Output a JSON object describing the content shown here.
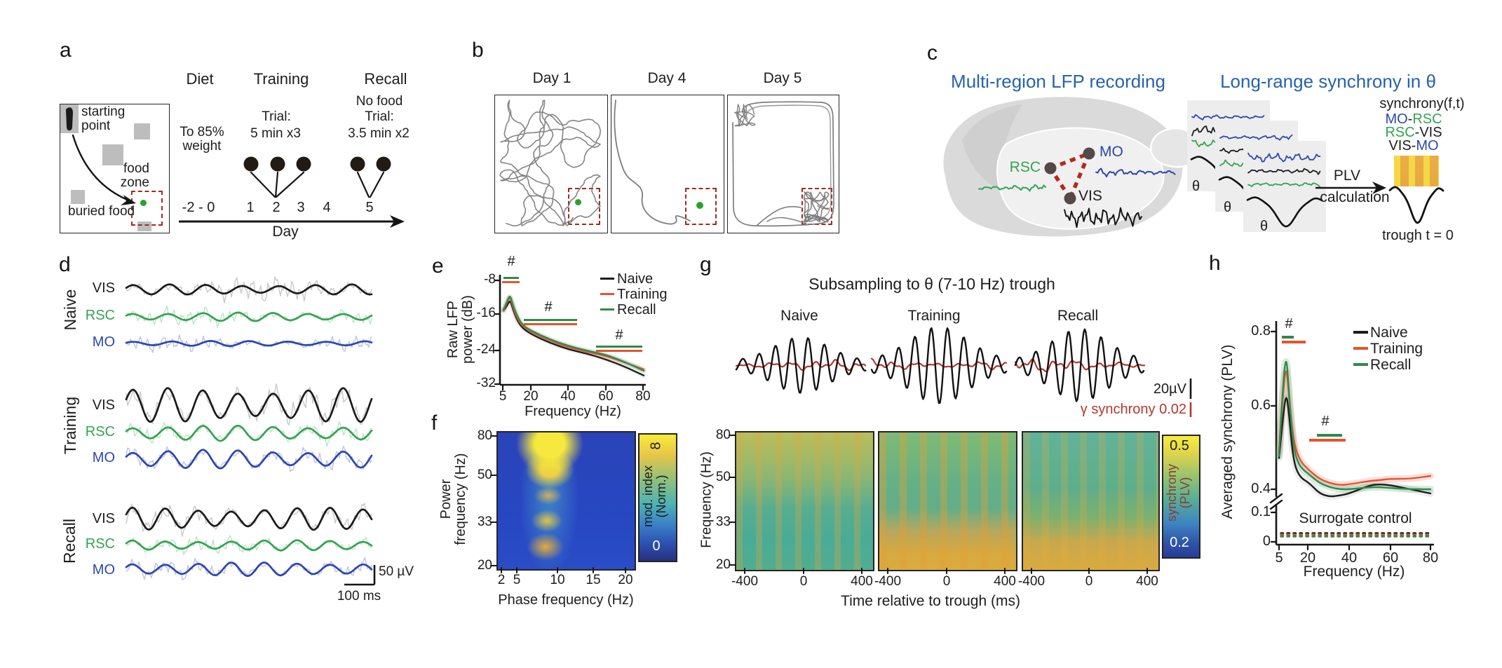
{
  "colors": {
    "heading_blue": "#2563a8",
    "naive": "#1c1c1c",
    "training": "#e25532",
    "recall": "#2e8b4a",
    "rsc_green": "#33a351",
    "mo_blue": "#2c46ae",
    "vis_black": "#1a1a1a",
    "raw_gray": "#c9c9c9",
    "raw_green": "#bfe3c8",
    "raw_blue": "#bdc3e8",
    "dashed_red": "#a02a20",
    "gamma_red": "#b5372b",
    "food_green": "#2ca02c",
    "track_gray": "#7d7d7d",
    "naive_band": "#9a9a9a"
  },
  "panel_a": {
    "label": "a",
    "arena": {
      "sp1": "starting",
      "sp2": "point",
      "fz1": "food",
      "fz2": "zone",
      "buried": "buried food"
    },
    "phases": [
      {
        "title": "Diet",
        "l1": "To 85%",
        "l2": "weight"
      },
      {
        "title": "Training",
        "l1": "Trial:",
        "l2": "5 min x3"
      },
      {
        "title": "Recall",
        "l1": "No food",
        "l2": "Trial:",
        "l3": "3.5 min x2"
      }
    ],
    "ticks": [
      "-2 - 0",
      "1",
      "2",
      "3",
      "4",
      "5"
    ],
    "axis_label": "Day"
  },
  "panel_b": {
    "label": "b",
    "days": [
      "Day 1",
      "Day 4",
      "Day 5"
    ]
  },
  "panel_c": {
    "label": "c",
    "title_left": "Multi-region LFP recording",
    "title_right": "Long-range synchrony in θ",
    "region_rsc": "RSC",
    "region_mo": "MO",
    "region_vis": "VIS",
    "theta": "θ",
    "plv1": "PLV",
    "plv2": "calculation",
    "synchrony_title": "synchrony(f,t)",
    "pairs": [
      {
        "a": "MO",
        "sep": "-",
        "b": "RSC"
      },
      {
        "a": "RSC",
        "sep": "-",
        "b": "VIS"
      },
      {
        "a": "VIS",
        "sep": "-",
        "b": "MO"
      }
    ],
    "trough_label": "trough t = 0"
  },
  "panel_d": {
    "label": "d",
    "groups": [
      "Naive",
      "Training",
      "Recall"
    ],
    "channels": [
      "VIS",
      "RSC",
      "MO"
    ],
    "scale_voltage": "50 µV",
    "scale_time": "100 ms"
  },
  "panel_e": {
    "label": "e",
    "ylabel1": "Raw LFP",
    "ylabel2": "power (dB)",
    "xlabel": "Frequency (Hz)",
    "yticks": [
      "-8",
      "-16",
      "-24",
      "-32"
    ],
    "xticks": [
      "5",
      "20",
      "40",
      "60",
      "80"
    ],
    "legend": [
      "Naive",
      "Training",
      "Recall"
    ],
    "sig": "#"
  },
  "panel_f": {
    "label": "f",
    "ylabel1": "Power",
    "ylabel2": "frequency (Hz)",
    "xlabel": "Phase frequency (Hz)",
    "yticks": [
      "80",
      "50",
      "33",
      "20"
    ],
    "xticks": [
      "2",
      "5",
      "10",
      "15",
      "20"
    ],
    "cb_label1": "mod. index",
    "cb_label2": "(Norm.)",
    "cb_max": "8",
    "cb_min": "0"
  },
  "panel_g": {
    "label": "g",
    "title": "Subsampling to θ (7-10 Hz) trough",
    "conditions": [
      "Naive",
      "Training",
      "Recall"
    ],
    "scale_voltage": "20µV",
    "scale_gamma": "γ synchrony 0.02",
    "ylabel": "Frequency (Hz)",
    "yticks": [
      "80",
      "50",
      "33",
      "20"
    ],
    "xticks": [
      "-400",
      "0",
      "400"
    ],
    "xlabel": "Time relative to trough (ms)",
    "cb_label1": "synchrony",
    "cb_label2": "(PLV)",
    "cb_max": "0.5",
    "cb_min": "0.2"
  },
  "panel_h": {
    "label": "h",
    "ylabel": "Averaged synchrony (PLV)",
    "xlabel": "Frequency (Hz)",
    "yticks": [
      "0.8",
      "0.6",
      "0.4",
      "0.1",
      "0"
    ],
    "xticks": [
      "5",
      "20",
      "40",
      "60",
      "80"
    ],
    "legend": [
      "Naive",
      "Training",
      "Recall"
    ],
    "surrogate": "Surrogate control",
    "sig": "#"
  },
  "chart_data": [
    {
      "panel": "e",
      "type": "line",
      "title": "Raw LFP power",
      "xlabel": "Frequency (Hz)",
      "ylabel": "Raw LFP power (dB)",
      "x": [
        5,
        7,
        8.5,
        10,
        12,
        15,
        20,
        30,
        40,
        50,
        60,
        70,
        80
      ],
      "series": [
        {
          "name": "Naive",
          "values": [
            -15,
            -13.8,
            -12.5,
            -14.5,
            -17,
            -19,
            -20.5,
            -22.5,
            -24,
            -25,
            -26.3,
            -28,
            -30
          ]
        },
        {
          "name": "Training",
          "values": [
            -15,
            -13,
            -11.7,
            -14,
            -16.5,
            -18.6,
            -20,
            -22,
            -23.5,
            -24.6,
            -25.5,
            -27,
            -28.6
          ]
        },
        {
          "name": "Recall",
          "values": [
            -14.8,
            -12.8,
            -11.3,
            -13.6,
            -16,
            -18.3,
            -19.7,
            -21.7,
            -23.2,
            -24.3,
            -25.2,
            -26.9,
            -28.9
          ]
        }
      ],
      "xlim": [
        5,
        80
      ],
      "ylim": [
        -32,
        -8
      ],
      "significance_bands_hz": [
        [
          5,
          12
        ],
        [
          16,
          45
        ],
        [
          54,
          80
        ]
      ],
      "legend_position": "upper right",
      "grid": false
    },
    {
      "panel": "f",
      "type": "heatmap",
      "xlabel": "Phase frequency (Hz)",
      "ylabel": "Power frequency (Hz)",
      "x_ticks": [
        2,
        5,
        10,
        15,
        20
      ],
      "y_ticks": [
        80,
        50,
        33,
        20
      ],
      "colorbar": {
        "label": "mod. index (Norm.)",
        "min": 0,
        "max": 8
      },
      "hotspots": [
        {
          "phase_hz": [
            7,
            10
          ],
          "power_hz": [
            55,
            80
          ],
          "value": "max"
        },
        {
          "phase_hz": [
            7,
            10
          ],
          "power_hz": [
            48,
            53
          ],
          "value": "high"
        },
        {
          "phase_hz": [
            7,
            10
          ],
          "power_hz": [
            33,
            42
          ],
          "value": "high"
        },
        {
          "phase_hz": [
            7,
            10
          ],
          "power_hz": [
            20,
            27
          ],
          "value": "high"
        }
      ],
      "background_value": "low (≈0) elsewhere on blue"
    },
    {
      "panel": "g",
      "type": "heatmap",
      "conditions": [
        "Naive",
        "Training",
        "Recall"
      ],
      "xlabel": "Time relative to trough (ms)",
      "ylabel": "Frequency (Hz)",
      "x_ticks": [
        -400,
        0,
        400
      ],
      "y_ticks": [
        80,
        50,
        33,
        20
      ],
      "colorbar": {
        "label": "synchrony (PLV)",
        "min": 0.2,
        "max": 0.5
      },
      "description": "Theta-trough-locked synchrony maps; theta-periodic vertical stripes in gamma band; low-frequency (20-33 Hz) synchrony grows from Naive to Training and Recall"
    },
    {
      "panel": "h",
      "type": "line",
      "xlabel": "Frequency (Hz)",
      "ylabel": "Averaged synchrony (PLV)",
      "x": [
        5,
        6.5,
        8.5,
        10,
        12,
        15,
        20,
        25,
        30,
        35,
        40,
        50,
        55,
        60,
        70,
        80
      ],
      "series": [
        {
          "name": "Naive",
          "values": [
            0.475,
            0.55,
            0.64,
            0.58,
            0.47,
            0.43,
            0.415,
            0.39,
            0.382,
            0.385,
            0.39,
            0.41,
            0.412,
            0.41,
            0.4,
            0.39
          ]
        },
        {
          "name": "Training",
          "values": [
            0.49,
            0.6,
            0.72,
            0.62,
            0.52,
            0.47,
            0.445,
            0.425,
            0.415,
            0.41,
            0.412,
            0.42,
            0.422,
            0.425,
            0.425,
            0.432
          ]
        },
        {
          "name": "Recall",
          "values": [
            0.48,
            0.62,
            0.75,
            0.63,
            0.5,
            0.455,
            0.435,
            0.415,
            0.405,
            0.4,
            0.4,
            0.405,
            0.405,
            0.403,
            0.4,
            0.4
          ]
        },
        {
          "name": "Surrogate control",
          "values": [
            0.025,
            0.025,
            0.025,
            0.025,
            0.025,
            0.025,
            0.025,
            0.025,
            0.025,
            0.025,
            0.025,
            0.025,
            0.025,
            0.025,
            0.025,
            0.025
          ]
        }
      ],
      "ylim": [
        0,
        0.8
      ],
      "axis_break": [
        0.12,
        0.37
      ],
      "significance_bands_hz": [
        [
          6,
          13
        ],
        [
          20,
          38
        ]
      ]
    }
  ]
}
